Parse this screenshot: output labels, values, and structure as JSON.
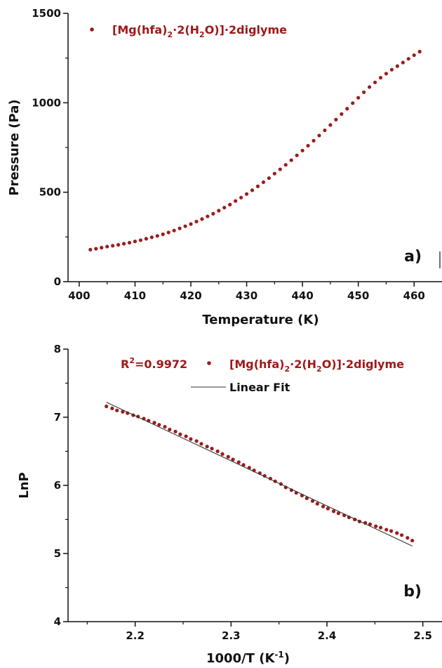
{
  "colors": {
    "series": "#9b1c1c",
    "axis": "#111111",
    "fit": "#333333"
  },
  "chart_data": [
    {
      "type": "scatter",
      "panel_label": "a)",
      "xlabel": "Temperature (K)",
      "ylabel": "Pressure (Pa)",
      "xlim": [
        398,
        465
      ],
      "ylim": [
        0,
        1500
      ],
      "xticks": [
        400,
        410,
        420,
        430,
        440,
        450,
        460
      ],
      "yticks": [
        0,
        500,
        1000,
        1500
      ],
      "grid": false,
      "legend_position": "top-left",
      "series": [
        {
          "name_parts": [
            "[Mg(hfa)",
            "2",
            "·2(H",
            "2",
            "O)]·2diglyme"
          ],
          "x": [
            402.0,
            403.0,
            404.0,
            405.0,
            406.0,
            407.0,
            408.0,
            409.0,
            410.0,
            411.0,
            412.0,
            413.0,
            414.0,
            415.0,
            416.0,
            417.0,
            418.0,
            419.0,
            420.0,
            421.0,
            422.0,
            423.0,
            424.0,
            425.0,
            426.0,
            427.0,
            428.0,
            429.0,
            430.0,
            431.0,
            432.0,
            433.0,
            434.0,
            435.0,
            436.0,
            437.0,
            438.0,
            439.0,
            440.0,
            441.0,
            442.0,
            443.0,
            444.0,
            445.0,
            446.0,
            447.0,
            448.0,
            449.0,
            450.0,
            451.0,
            452.0,
            453.0,
            454.0,
            455.0,
            456.0,
            457.0,
            458.0,
            459.0,
            460.0,
            461.0
          ],
          "y": [
            179,
            184,
            190,
            196,
            201,
            206,
            212,
            218,
            225,
            232,
            240,
            248,
            256,
            265,
            275,
            286,
            298,
            310,
            322,
            336,
            350,
            365,
            380,
            397,
            414,
            431,
            451,
            470,
            490,
            511,
            533,
            556,
            579,
            604,
            628,
            653,
            679,
            706,
            733,
            760,
            788,
            817,
            846,
            876,
            906,
            937,
            967,
            998,
            1028,
            1059,
            1088,
            1114,
            1140,
            1163,
            1185,
            1205,
            1225,
            1246,
            1266,
            1286
          ]
        }
      ]
    },
    {
      "type": "scatter",
      "panel_label": "b)",
      "xlabel_base": "1000/T (K",
      "xlabel_sup": "-1",
      "xlabel_end": ")",
      "ylabel": "LnP",
      "xlim": [
        2.13,
        2.52
      ],
      "ylim": [
        4,
        8
      ],
      "xticks": [
        2.2,
        2.3,
        2.4,
        2.5
      ],
      "yticks": [
        4,
        5,
        6,
        7,
        8
      ],
      "grid": false,
      "legend_position": "top-center",
      "r2_parts": [
        "R",
        "2",
        "=0.9972"
      ],
      "series": [
        {
          "name_parts": [
            "[Mg(hfa)",
            "2",
            "·2(H",
            "2",
            "O)]·2diglyme"
          ],
          "x": [
            2.17,
            2.176,
            2.181,
            2.187,
            2.192,
            2.198,
            2.203,
            2.209,
            2.214,
            2.22,
            2.225,
            2.231,
            2.236,
            2.242,
            2.247,
            2.253,
            2.258,
            2.264,
            2.269,
            2.275,
            2.28,
            2.286,
            2.291,
            2.297,
            2.302,
            2.308,
            2.313,
            2.319,
            2.324,
            2.33,
            2.335,
            2.341,
            2.346,
            2.352,
            2.357,
            2.363,
            2.368,
            2.374,
            2.379,
            2.385,
            2.39,
            2.396,
            2.401,
            2.407,
            2.412,
            2.418,
            2.423,
            2.429,
            2.434,
            2.44,
            2.445,
            2.451,
            2.456,
            2.462,
            2.467,
            2.473,
            2.478,
            2.484,
            2.489
          ],
          "y": [
            7.16,
            7.13,
            7.1,
            7.08,
            7.06,
            7.03,
            7.01,
            6.98,
            6.95,
            6.92,
            6.89,
            6.86,
            6.82,
            6.79,
            6.75,
            6.72,
            6.68,
            6.65,
            6.61,
            6.57,
            6.54,
            6.5,
            6.46,
            6.42,
            6.38,
            6.34,
            6.3,
            6.26,
            6.22,
            6.18,
            6.14,
            6.1,
            6.06,
            6.02,
            5.97,
            5.93,
            5.89,
            5.85,
            5.81,
            5.77,
            5.73,
            5.69,
            5.66,
            5.62,
            5.59,
            5.56,
            5.53,
            5.5,
            5.47,
            5.45,
            5.43,
            5.4,
            5.38,
            5.35,
            5.33,
            5.3,
            5.27,
            5.23,
            5.19
          ]
        },
        {
          "name": "Linear Fit",
          "x": [
            2.17,
            2.489
          ],
          "y": [
            7.22,
            5.11
          ]
        }
      ]
    }
  ]
}
